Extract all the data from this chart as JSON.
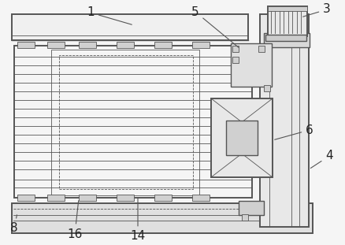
{
  "bg_color": "#f5f5f5",
  "lc": "#555555",
  "lc_dark": "#333333",
  "fc_white": "#ffffff",
  "fc_light": "#e8e8e8",
  "fc_mid": "#d0d0d0",
  "fc_dark": "#b8b8b8",
  "lw_thick": 1.4,
  "lw_med": 1.0,
  "lw_thin": 0.6,
  "label_fs": 11
}
